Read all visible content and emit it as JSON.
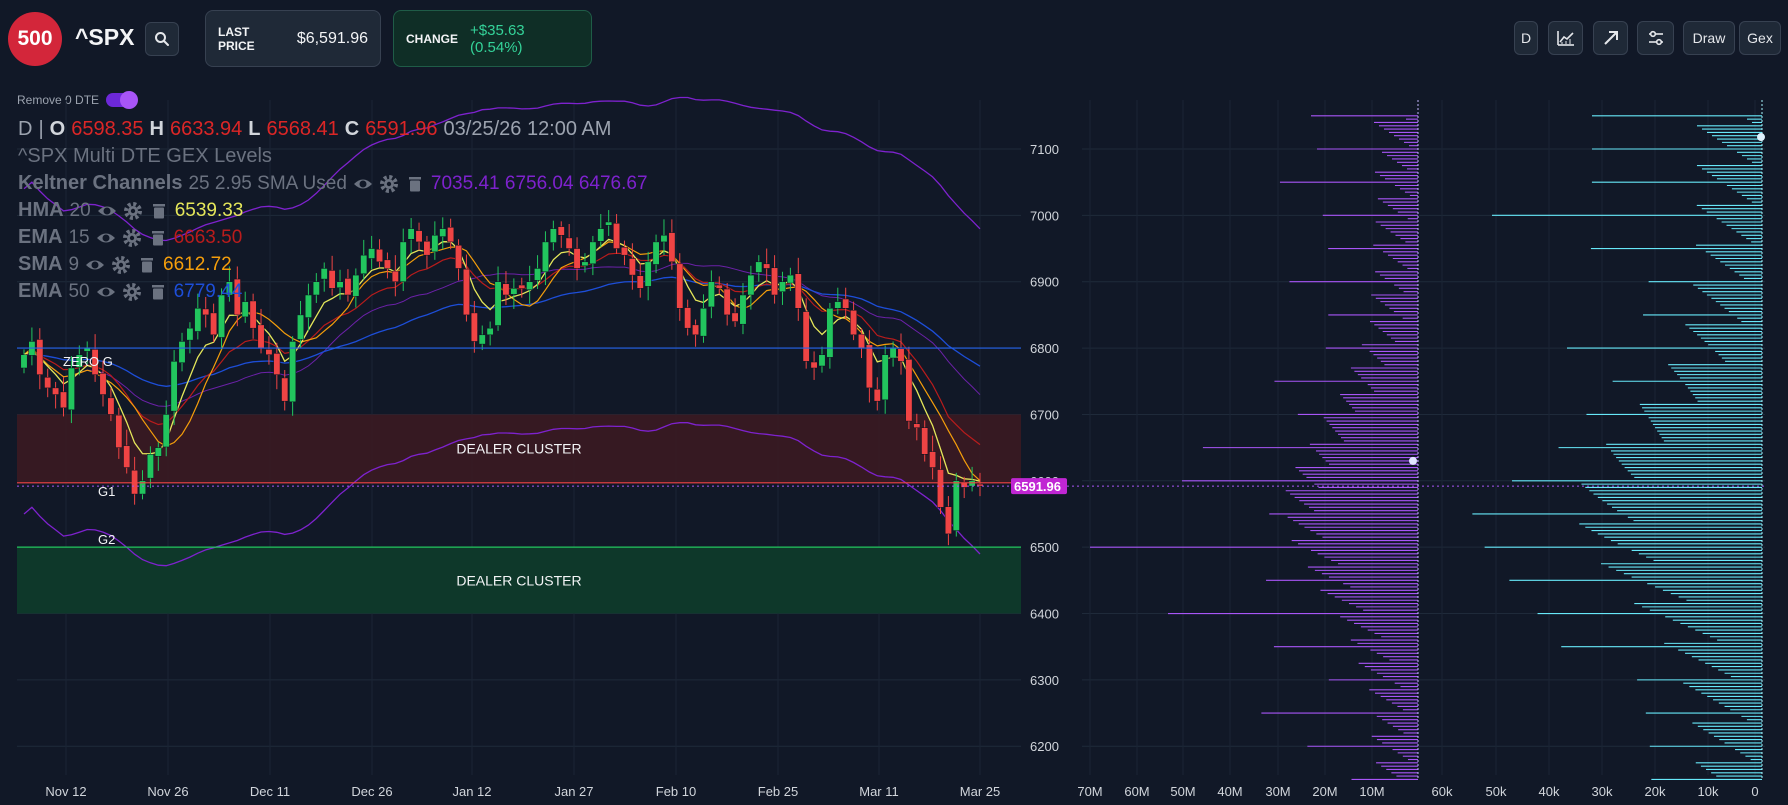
{
  "header": {
    "logo_text": "500",
    "ticker": "^SPX",
    "last_price_label": "LAST PRICE",
    "last_price_value": "$6,591.96",
    "change_label": "CHANGE",
    "change_value": "+$35.63 (0.54%)",
    "toolbar": {
      "interval": "D",
      "draw": "Draw",
      "gex": "Gex"
    }
  },
  "toggle": {
    "label": "Remove 0 DTE",
    "on": true
  },
  "legend": {
    "ohlc": {
      "interval": "D",
      "sep": "|",
      "o_key": "O",
      "o": "6598.35",
      "h_key": "H",
      "h": "6633.94",
      "l_key": "L",
      "l": "6568.41",
      "c_key": "C",
      "c": "6591.96",
      "datetime": "03/25/26 12:00 AM"
    },
    "gex_title": "^SPX Multi DTE GEX Levels",
    "keltner": {
      "name": "Keltner Channels",
      "params": "25 2.95 SMA Used",
      "values": "7035.41 6756.04 6476.67",
      "color": "#7e22ce"
    },
    "hma": {
      "name": "HMA",
      "params": "20",
      "value": "6539.33",
      "color": "#e5e75a"
    },
    "ema15": {
      "name": "EMA",
      "params": "15",
      "value": "6663.50",
      "color": "#b91c1c"
    },
    "sma9": {
      "name": "SMA",
      "params": "9",
      "value": "6612.72",
      "color": "#f59e0b"
    },
    "ema50": {
      "name": "EMA",
      "params": "50",
      "value": "6779.44",
      "color": "#1d4ed8"
    }
  },
  "levels": {
    "zero_g": "ZERO G",
    "g1": "G1",
    "g2": "G2",
    "dealer_cluster_upper": "DEALER CLUSTER",
    "dealer_cluster_lower": "DEALER CLUSTER",
    "zero_g_price": 6800,
    "g1_price": 6597,
    "g2_price": 6500,
    "upper_cluster_range": [
      6597,
      6700
    ],
    "lower_cluster_range": [
      6400,
      6500
    ],
    "current_price_label": "6591.96",
    "current_price": 6591.96
  },
  "colors": {
    "bg": "#111827",
    "up": "#22c55e",
    "down": "#ef4444",
    "zero_g_line": "#2563eb",
    "cluster_red": "#3b1a22",
    "cluster_green": "#0f3a2a",
    "gex_purple": "#a855f7",
    "gex_teal": "#67e8f9",
    "price_tag": "#c026d3"
  },
  "chart_data": {
    "type": "candlestick",
    "x_ticks": [
      "Nov 12",
      "Nov 26",
      "Dec 11",
      "Dec 26",
      "Jan 12",
      "Jan 27",
      "Feb 10",
      "Feb 25",
      "Mar 11",
      "Mar 25"
    ],
    "y_ticks": [
      "7100",
      "7000",
      "6900",
      "6800",
      "6700",
      "6600",
      "6500",
      "6400",
      "6300",
      "6200"
    ],
    "ylim": [
      6130,
      7200
    ],
    "close": [
      6790,
      6810,
      6760,
      6740,
      6730,
      6710,
      6770,
      6790,
      6800,
      6760,
      6730,
      6700,
      6650,
      6620,
      6580,
      6600,
      6640,
      6650,
      6700,
      6780,
      6810,
      6830,
      6860,
      6850,
      6820,
      6880,
      6900,
      6850,
      6870,
      6830,
      6800,
      6790,
      6760,
      6720,
      6810,
      6850,
      6880,
      6900,
      6920,
      6890,
      6900,
      6880,
      6910,
      6940,
      6950,
      6930,
      6920,
      6900,
      6960,
      6980,
      6960,
      6940,
      6970,
      6980,
      6960,
      6920,
      6850,
      6810,
      6820,
      6830,
      6900,
      6880,
      6890,
      6890,
      6900,
      6920,
      6960,
      6980,
      6970,
      6950,
      6920,
      6930,
      6960,
      6980,
      6990,
      6950,
      6940,
      6910,
      6890,
      6930,
      6960,
      6970,
      6930,
      6860,
      6830,
      6820,
      6860,
      6900,
      6890,
      6850,
      6840,
      6880,
      6910,
      6930,
      6920,
      6880,
      6900,
      6910,
      6860,
      6780,
      6770,
      6790,
      6860,
      6870,
      6860,
      6820,
      6800,
      6740,
      6720,
      6790,
      6800,
      6780,
      6690,
      6680,
      6640,
      6620,
      6560,
      6520,
      6600,
      6590,
      6600,
      6592
    ],
    "candles": 122,
    "gex_x_ticks": [
      "70M",
      "60M",
      "50M",
      "40M",
      "30M",
      "20M",
      "10M",
      "60k",
      "50k",
      "40k",
      "30k",
      "20k",
      "10k",
      "0"
    ]
  }
}
